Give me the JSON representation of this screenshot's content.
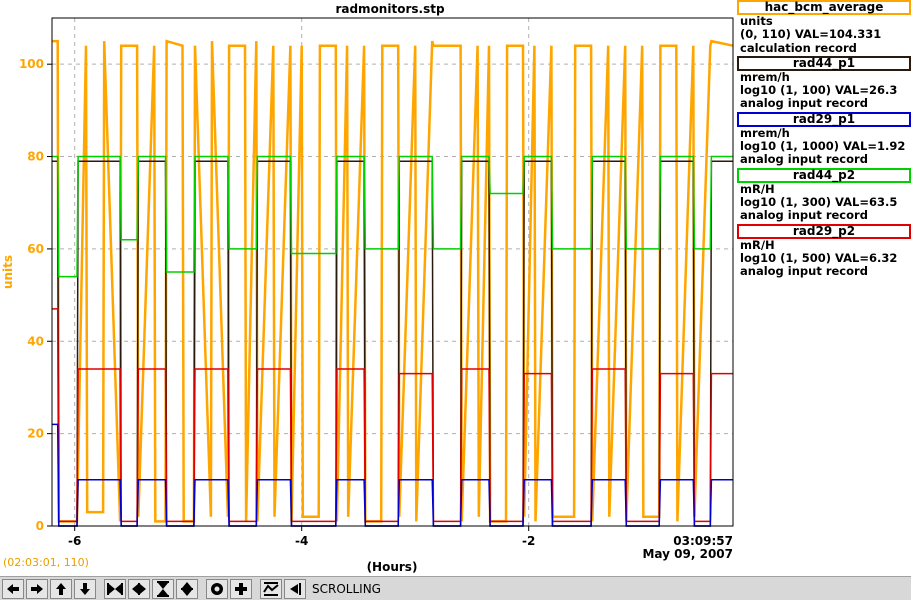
{
  "title": "radmonitors.stp",
  "ylabel": "units",
  "xlabel": "(Hours)",
  "end_time": "03:09:57",
  "end_date": "May 09, 2007",
  "cursor_readout": "(02:03:01, 110)",
  "toolbar": {
    "mode_label": "SCROLLING",
    "buttons": [
      "scroll-left-icon",
      "scroll-right-icon",
      "scroll-up-icon",
      "scroll-down-icon",
      "x-compress-icon",
      "x-expand-icon",
      "y-compress-icon",
      "y-expand-icon",
      "zoom-reset-icon",
      "zoom-in-icon",
      "autoscale-icon",
      "skip-to-end-icon"
    ]
  },
  "legend": [
    {
      "name": "hac_bcm_average",
      "color": "#ffa500",
      "line1": "units",
      "line2": "(0, 110) VAL=104.331",
      "line3": "calculation record"
    },
    {
      "name": "rad44_p1",
      "color": "#2a1a0e",
      "line1": "mrem/h",
      "line2": "log10 (1, 100) VAL=26.3",
      "line3": "analog input record"
    },
    {
      "name": "rad29_p1",
      "color": "#0000d0",
      "line1": "mrem/h",
      "line2": "log10 (1, 1000) VAL=1.92",
      "line3": "analog input record"
    },
    {
      "name": "rad44_p2",
      "color": "#00d000",
      "line1": "mR/H",
      "line2": "log10 (1, 300) VAL=63.5",
      "line3": "analog input record"
    },
    {
      "name": "rad29_p2",
      "color": "#e00000",
      "line1": "mR/H",
      "line2": "log10 (1, 500) VAL=6.32",
      "line3": "analog input record"
    }
  ],
  "chart_data": {
    "type": "line",
    "title": "radmonitors.stp",
    "xlabel": "(Hours)",
    "ylabel": "units",
    "xlim": [
      -6.2,
      -0.2
    ],
    "ylim": [
      0,
      110
    ],
    "xticks": [
      -6,
      -4,
      -2
    ],
    "yticks": [
      0,
      20,
      40,
      60,
      80,
      100
    ],
    "grid": true,
    "legend_position": "right",
    "series": [
      {
        "name": "hac_bcm_average",
        "color": "#ffa500",
        "lw": 2.5,
        "x": [
          -6.2,
          -6.15,
          -6.14,
          -5.98,
          -5.9,
          -5.89,
          -5.75,
          -5.74,
          -5.6,
          -5.59,
          -5.45,
          -5.44,
          -5.3,
          -5.29,
          -5.2,
          -5.19,
          -5.05,
          -5.04,
          -4.95,
          -4.94,
          -4.8,
          -4.79,
          -4.65,
          -4.64,
          -4.5,
          -4.49,
          -4.4,
          -4.39,
          -4.25,
          -4.24,
          -4.1,
          -4.09,
          -4.0,
          -3.99,
          -3.85,
          -3.84,
          -3.7,
          -3.69,
          -3.6,
          -3.59,
          -3.45,
          -3.44,
          -3.3,
          -3.29,
          -3.15,
          -3.14,
          -3.0,
          -2.99,
          -2.85,
          -2.84,
          -2.6,
          -2.59,
          -2.45,
          -2.44,
          -2.35,
          -2.34,
          -2.2,
          -2.19,
          -2.05,
          -2.04,
          -1.95,
          -1.94,
          -1.8,
          -1.79,
          -1.6,
          -1.59,
          -1.45,
          -1.44,
          -1.3,
          -1.29,
          -1.15,
          -1.14,
          -1.0,
          -0.99,
          -0.85,
          -0.84,
          -0.7,
          -0.69,
          -0.55,
          -0.54,
          -0.4,
          -0.39,
          -0.2
        ],
        "y": [
          105,
          105,
          1,
          1,
          104,
          3,
          3,
          105,
          1,
          104,
          104,
          2,
          104,
          1,
          1,
          105,
          104,
          1,
          1,
          104,
          2,
          105,
          2,
          104,
          104,
          1,
          105,
          1,
          104,
          2,
          104,
          1,
          104,
          2,
          2,
          104,
          104,
          1,
          104,
          2,
          104,
          1,
          1,
          104,
          104,
          2,
          104,
          1,
          105,
          104,
          104,
          1,
          104,
          2,
          104,
          1,
          1,
          104,
          104,
          2,
          104,
          1,
          104,
          2,
          2,
          104,
          104,
          1,
          104,
          2,
          104,
          1,
          104,
          2,
          2,
          104,
          104,
          1,
          104,
          2,
          104,
          105,
          104
        ]
      },
      {
        "name": "rad44_p1",
        "color": "#2a1a0e",
        "lw": 1.5,
        "x": [
          -6.2,
          -6.15,
          -6.14,
          -5.98,
          -5.97,
          -5.6,
          -5.59,
          -5.45,
          -5.44,
          -5.2,
          -5.19,
          -4.95,
          -4.94,
          -4.65,
          -4.64,
          -4.4,
          -4.39,
          -4.1,
          -4.09,
          -3.7,
          -3.69,
          -3.45,
          -3.44,
          -3.15,
          -3.14,
          -2.85,
          -2.84,
          -2.6,
          -2.59,
          -2.35,
          -2.34,
          -2.05,
          -2.04,
          -1.8,
          -1.79,
          -1.45,
          -1.44,
          -1.15,
          -1.14,
          -0.85,
          -0.84,
          -0.55,
          -0.54,
          -0.4,
          -0.39,
          -0.2
        ],
        "y": [
          79,
          79,
          0,
          0,
          79,
          79,
          0,
          0,
          79,
          79,
          0,
          0,
          79,
          79,
          0,
          0,
          79,
          79,
          0,
          0,
          79,
          79,
          0,
          0,
          79,
          79,
          0,
          0,
          79,
          79,
          0,
          0,
          79,
          79,
          0,
          0,
          79,
          79,
          0,
          0,
          79,
          79,
          0,
          0,
          79,
          79
        ]
      },
      {
        "name": "rad44_p2",
        "color": "#00d000",
        "lw": 1.5,
        "x": [
          -6.2,
          -6.15,
          -6.14,
          -5.98,
          -5.97,
          -5.6,
          -5.59,
          -5.45,
          -5.44,
          -5.2,
          -5.19,
          -4.95,
          -4.94,
          -4.65,
          -4.64,
          -4.4,
          -4.39,
          -4.1,
          -4.09,
          -3.7,
          -3.69,
          -3.45,
          -3.44,
          -3.15,
          -3.14,
          -2.85,
          -2.84,
          -2.6,
          -2.59,
          -2.35,
          -2.34,
          -2.05,
          -2.04,
          -1.8,
          -1.79,
          -1.45,
          -1.44,
          -1.15,
          -1.14,
          -0.85,
          -0.84,
          -0.55,
          -0.54,
          -0.4,
          -0.39,
          -0.2
        ],
        "y": [
          80,
          80,
          54,
          54,
          80,
          80,
          62,
          62,
          80,
          80,
          55,
          55,
          80,
          80,
          60,
          60,
          80,
          80,
          59,
          59,
          80,
          80,
          60,
          60,
          80,
          80,
          60,
          60,
          80,
          80,
          72,
          72,
          80,
          80,
          60,
          60,
          80,
          80,
          60,
          60,
          80,
          80,
          60,
          60,
          80,
          80
        ]
      },
      {
        "name": "rad29_p2",
        "color": "#e00000",
        "lw": 1.5,
        "x": [
          -6.2,
          -6.15,
          -6.14,
          -5.98,
          -5.97,
          -5.6,
          -5.59,
          -5.45,
          -5.44,
          -5.2,
          -5.19,
          -4.95,
          -4.94,
          -4.65,
          -4.64,
          -4.4,
          -4.39,
          -4.1,
          -4.09,
          -3.7,
          -3.69,
          -3.45,
          -3.44,
          -3.15,
          -3.14,
          -2.85,
          -2.84,
          -2.6,
          -2.59,
          -2.35,
          -2.34,
          -2.05,
          -2.04,
          -1.8,
          -1.79,
          -1.45,
          -1.44,
          -1.15,
          -1.14,
          -0.85,
          -0.84,
          -0.55,
          -0.54,
          -0.4,
          -0.39,
          -0.2
        ],
        "y": [
          47,
          47,
          1,
          1,
          34,
          34,
          1,
          1,
          34,
          34,
          1,
          1,
          34,
          34,
          1,
          1,
          34,
          34,
          1,
          1,
          34,
          34,
          1,
          1,
          33,
          33,
          1,
          1,
          34,
          34,
          1,
          1,
          33,
          33,
          1,
          1,
          34,
          34,
          1,
          1,
          33,
          33,
          1,
          1,
          33,
          33
        ]
      },
      {
        "name": "rad29_p1",
        "color": "#0000d0",
        "lw": 1.5,
        "x": [
          -6.2,
          -6.15,
          -6.14,
          -5.98,
          -5.97,
          -5.6,
          -5.59,
          -5.45,
          -5.44,
          -5.2,
          -5.19,
          -4.95,
          -4.94,
          -4.65,
          -4.64,
          -4.4,
          -4.39,
          -4.1,
          -4.09,
          -3.7,
          -3.69,
          -3.45,
          -3.44,
          -3.15,
          -3.14,
          -2.85,
          -2.84,
          -2.6,
          -2.59,
          -2.35,
          -2.34,
          -2.05,
          -2.04,
          -1.8,
          -1.79,
          -1.45,
          -1.44,
          -1.15,
          -1.14,
          -0.85,
          -0.84,
          -0.55,
          -0.54,
          -0.4,
          -0.39,
          -0.2
        ],
        "y": [
          22,
          22,
          0,
          0,
          10,
          10,
          0,
          0,
          10,
          10,
          0,
          0,
          10,
          10,
          0,
          0,
          10,
          10,
          0,
          0,
          10,
          10,
          0,
          0,
          10,
          10,
          0,
          0,
          10,
          10,
          0,
          0,
          10,
          10,
          0,
          0,
          10,
          10,
          0,
          0,
          10,
          10,
          0,
          0,
          10,
          10
        ]
      }
    ]
  }
}
